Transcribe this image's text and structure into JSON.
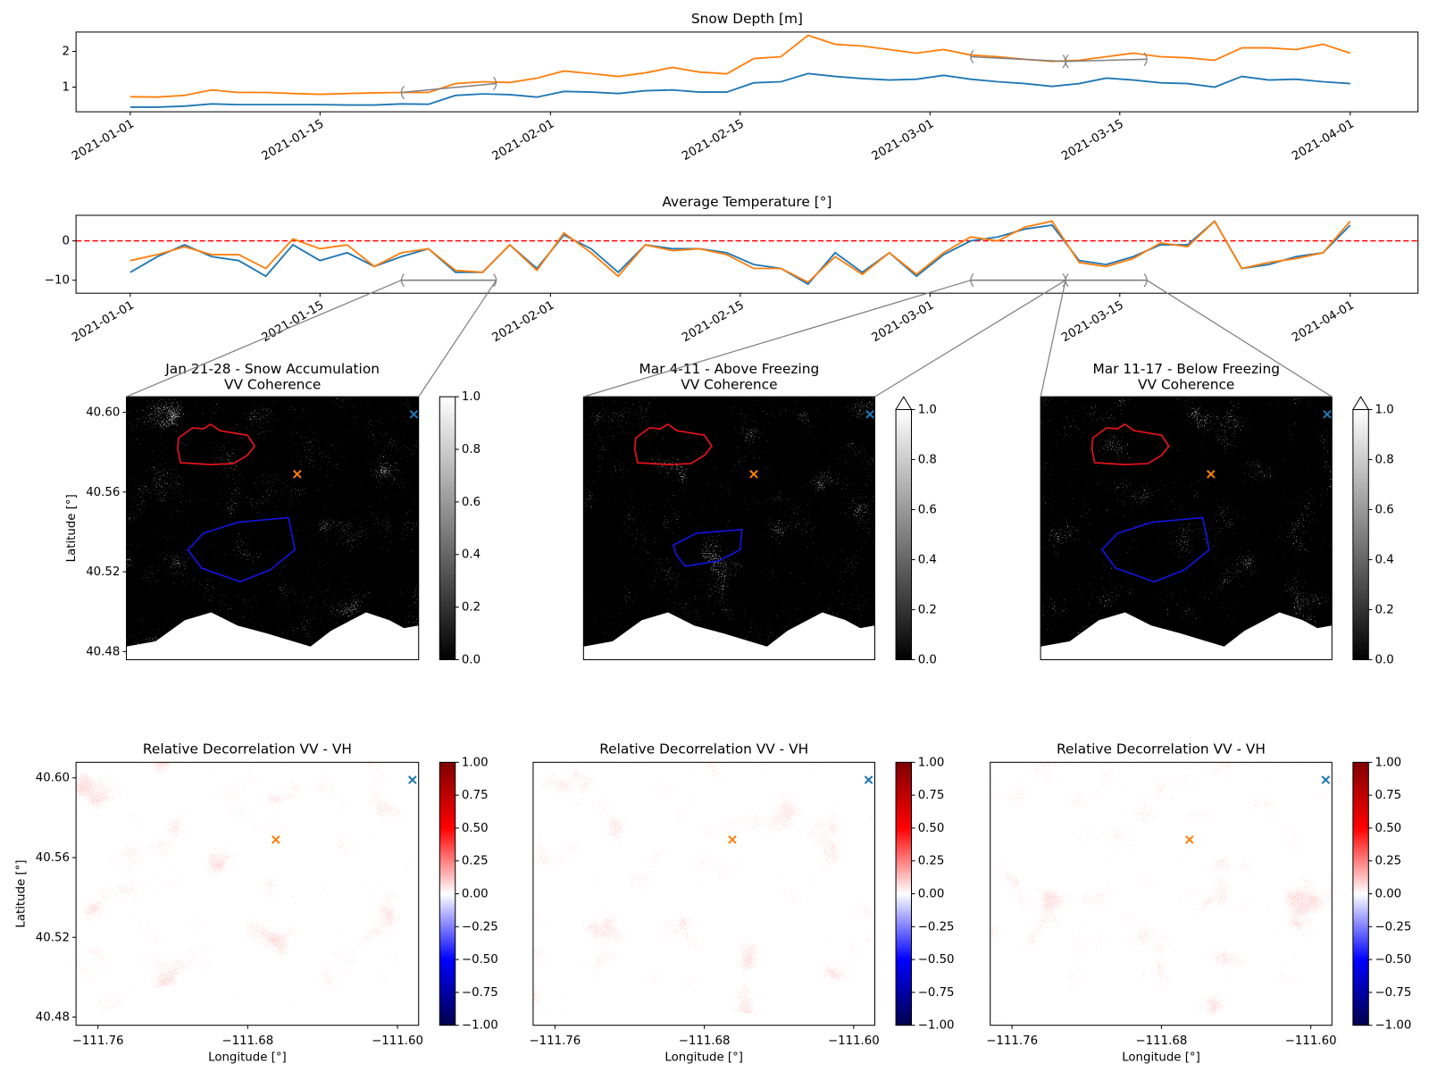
{
  "chart_data": [
    {
      "type": "line",
      "title": "Snow Depth [m]",
      "x": [
        "2021-01-01",
        "2021-01-03",
        "2021-01-05",
        "2021-01-07",
        "2021-01-09",
        "2021-01-11",
        "2021-01-13",
        "2021-01-15",
        "2021-01-17",
        "2021-01-19",
        "2021-01-21",
        "2021-01-23",
        "2021-01-25",
        "2021-01-27",
        "2021-01-29",
        "2021-01-31",
        "2021-02-02",
        "2021-02-04",
        "2021-02-06",
        "2021-02-08",
        "2021-02-10",
        "2021-02-12",
        "2021-02-14",
        "2021-02-16",
        "2021-02-18",
        "2021-02-20",
        "2021-02-22",
        "2021-02-24",
        "2021-02-26",
        "2021-02-28",
        "2021-03-02",
        "2021-03-04",
        "2021-03-06",
        "2021-03-08",
        "2021-03-10",
        "2021-03-12",
        "2021-03-14",
        "2021-03-16",
        "2021-03-18",
        "2021-03-20",
        "2021-03-22",
        "2021-03-24",
        "2021-03-26",
        "2021-03-28",
        "2021-03-30",
        "2021-04-01"
      ],
      "series": [
        {
          "color": "#1f77b4",
          "values": [
            0.44,
            0.44,
            0.47,
            0.53,
            0.51,
            0.51,
            0.51,
            0.51,
            0.5,
            0.5,
            0.53,
            0.52,
            0.77,
            0.81,
            0.79,
            0.72,
            0.88,
            0.86,
            0.82,
            0.9,
            0.92,
            0.86,
            0.86,
            1.12,
            1.15,
            1.38,
            1.3,
            1.24,
            1.2,
            1.22,
            1.33,
            1.22,
            1.15,
            1.1,
            1.02,
            1.1,
            1.25,
            1.2,
            1.12,
            1.1,
            1.0,
            1.3,
            1.2,
            1.22,
            1.15,
            1.1
          ]
        },
        {
          "color": "#ff7f0e",
          "values": [
            0.73,
            0.72,
            0.77,
            0.92,
            0.85,
            0.85,
            0.82,
            0.8,
            0.82,
            0.84,
            0.85,
            0.85,
            1.1,
            1.15,
            1.13,
            1.25,
            1.45,
            1.38,
            1.3,
            1.4,
            1.55,
            1.42,
            1.37,
            1.8,
            1.85,
            2.45,
            2.2,
            2.15,
            2.05,
            1.95,
            2.05,
            1.9,
            1.85,
            1.78,
            1.72,
            1.75,
            1.85,
            1.95,
            1.85,
            1.82,
            1.75,
            2.1,
            2.1,
            2.05,
            2.2,
            1.95
          ]
        }
      ],
      "xlim": [
        "2020-12-28",
        "2021-04-06"
      ],
      "xticks": [
        "2021-01-01",
        "2021-01-15",
        "2021-02-01",
        "2021-02-15",
        "2021-03-01",
        "2021-03-15",
        "2021-04-01"
      ],
      "ylim": [
        0.31,
        2.54
      ],
      "yticks": [
        1,
        2
      ],
      "periods": [
        {
          "start": "2021-01-21",
          "end": "2021-01-28",
          "y": [
            0.85,
            1.1
          ]
        },
        {
          "start": "2021-03-04",
          "end": "2021-03-11",
          "y": [
            1.85,
            1.72
          ]
        },
        {
          "start": "2021-03-11",
          "end": "2021-03-17",
          "y": [
            1.72,
            1.78
          ]
        }
      ],
      "period_color": "#808080"
    },
    {
      "type": "line",
      "title": "Average Temperature [°]",
      "x": [
        "2021-01-01",
        "2021-01-03",
        "2021-01-05",
        "2021-01-07",
        "2021-01-09",
        "2021-01-11",
        "2021-01-13",
        "2021-01-15",
        "2021-01-17",
        "2021-01-19",
        "2021-01-21",
        "2021-01-23",
        "2021-01-25",
        "2021-01-27",
        "2021-01-29",
        "2021-01-31",
        "2021-02-02",
        "2021-02-04",
        "2021-02-06",
        "2021-02-08",
        "2021-02-10",
        "2021-02-12",
        "2021-02-14",
        "2021-02-16",
        "2021-02-18",
        "2021-02-20",
        "2021-02-22",
        "2021-02-24",
        "2021-02-26",
        "2021-02-28",
        "2021-03-02",
        "2021-03-04",
        "2021-03-06",
        "2021-03-08",
        "2021-03-10",
        "2021-03-12",
        "2021-03-14",
        "2021-03-16",
        "2021-03-18",
        "2021-03-20",
        "2021-03-22",
        "2021-03-24",
        "2021-03-26",
        "2021-03-28",
        "2021-03-30",
        "2021-04-01"
      ],
      "series": [
        {
          "color": "#1f77b4",
          "values": [
            -8,
            -4,
            -1,
            -4,
            -5,
            -9,
            -1,
            -5,
            -3,
            -6.5,
            -4,
            -2,
            -8,
            -8,
            -1,
            -7,
            1.5,
            -2,
            -8,
            -1,
            -2,
            -2,
            -3,
            -6,
            -7,
            -11,
            -3,
            -8,
            -3,
            -9,
            -3.5,
            0,
            1,
            3,
            4,
            -5,
            -6,
            -4,
            -1,
            -1,
            5,
            -7,
            -6,
            -4,
            -3,
            4
          ]
        },
        {
          "color": "#ff7f0e",
          "values": [
            -5,
            -3.5,
            -1.5,
            -3.5,
            -3.5,
            -7,
            0.5,
            -2,
            -1,
            -6.5,
            -3,
            -2,
            -7.5,
            -8,
            -1,
            -7.5,
            2,
            -3,
            -9,
            -1,
            -2.5,
            -2,
            -3.5,
            -7,
            -7,
            -10.5,
            -4,
            -8.5,
            -3,
            -8.5,
            -3,
            1,
            0,
            3.5,
            5,
            -5.5,
            -6.5,
            -4.5,
            -0.5,
            -1.5,
            5,
            -7,
            -5.5,
            -4.5,
            -3,
            5
          ]
        }
      ],
      "xlim": [
        "2020-12-28",
        "2021-04-06"
      ],
      "xticks": [
        "2021-01-01",
        "2021-01-15",
        "2021-02-01",
        "2021-02-15",
        "2021-03-01",
        "2021-03-15",
        "2021-04-01"
      ],
      "ylim": [
        -13.3,
        6.5
      ],
      "yticks": [
        {
          "value": -10,
          "label": "−10"
        },
        0
      ],
      "reference_line": {
        "value": 0,
        "color": "#ff0000",
        "style": "dashed"
      },
      "periods": [
        {
          "start": "2021-01-21",
          "end": "2021-01-28",
          "y": [
            -10,
            -10
          ]
        },
        {
          "start": "2021-03-04",
          "end": "2021-03-11",
          "y": [
            -10,
            -10
          ]
        },
        {
          "start": "2021-03-11",
          "end": "2021-03-17",
          "y": [
            -10,
            -10
          ]
        }
      ],
      "period_color": "#808080"
    },
    {
      "type": "image",
      "title": "Jan 21-28 - Snow Accumulation",
      "subtitle": "VV Coherence",
      "colormap": "gray",
      "xlim": [
        -111.772,
        -111.589
      ],
      "ylim": [
        40.4759,
        40.6078
      ],
      "ylabel": "Latitude [°]",
      "yticks": [
        {
          "value": 40.48,
          "label": "40.48"
        },
        40.52,
        40.56,
        {
          "value": 40.6,
          "label": "40.60"
        }
      ],
      "clim": [
        0,
        1
      ],
      "cbar_ticks": [
        {
          "value": 0,
          "label": "0.0"
        },
        0.2,
        0.4,
        0.6,
        0.8,
        {
          "value": 1,
          "label": "1.0"
        }
      ],
      "markers": [
        {
          "lon": -111.665,
          "lat": 40.569,
          "color": "#ff7f0e"
        },
        {
          "lon": -111.592,
          "lat": 40.599,
          "color": "#1f77b4"
        }
      ]
    },
    {
      "type": "image",
      "title": "Mar 4-11 - Above Freezing",
      "subtitle": "VV Coherence",
      "colormap": "gray",
      "colorbar_extend": "max",
      "xlim": [
        -111.772,
        -111.589
      ],
      "ylim": [
        40.4759,
        40.6078
      ],
      "clim": [
        0,
        1
      ],
      "cbar_ticks": [
        {
          "value": 0,
          "label": "0.0"
        },
        0.2,
        0.4,
        0.6,
        0.8,
        {
          "value": 1,
          "label": "1.0"
        }
      ],
      "markers": [
        {
          "lon": -111.665,
          "lat": 40.569,
          "color": "#ff7f0e"
        },
        {
          "lon": -111.592,
          "lat": 40.599,
          "color": "#1f77b4"
        }
      ]
    },
    {
      "type": "image",
      "title": "Mar 11-17 - Below Freezing",
      "subtitle": "VV Coherence",
      "colormap": "gray",
      "colorbar_extend": "max",
      "xlim": [
        -111.772,
        -111.589
      ],
      "ylim": [
        40.4759,
        40.6078
      ],
      "clim": [
        0,
        1
      ],
      "cbar_ticks": [
        {
          "value": 0,
          "label": "0.0"
        },
        0.2,
        0.4,
        0.6,
        0.8,
        {
          "value": 1,
          "label": "1.0"
        }
      ],
      "markers": [
        {
          "lon": -111.665,
          "lat": 40.569,
          "color": "#ff7f0e"
        },
        {
          "lon": -111.592,
          "lat": 40.599,
          "color": "#1f77b4"
        }
      ]
    },
    {
      "type": "image",
      "title": "Relative Decorrelation VV - VH",
      "colormap": "seismic",
      "xlim": [
        -111.7717,
        -111.5887
      ],
      "ylim": [
        40.4759,
        40.6078
      ],
      "xlabel": "Longitude [°]",
      "xticks": [
        {
          "value": -111.76,
          "label": "−111.76"
        },
        {
          "value": -111.68,
          "label": "−111.68"
        },
        {
          "value": -111.6,
          "label": "−111.60"
        }
      ],
      "ylabel": "Latitude [°]",
      "yticks": [
        {
          "value": 40.48,
          "label": "40.48"
        },
        40.52,
        40.56,
        {
          "value": 40.6,
          "label": "40.60"
        }
      ],
      "clim": [
        -1,
        1
      ],
      "cbar_ticks": [
        {
          "value": -1,
          "label": "−1.00"
        },
        {
          "value": -0.75,
          "label": "−0.75"
        },
        {
          "value": -0.5,
          "label": "−0.50"
        },
        {
          "value": -0.25,
          "label": "−0.25"
        },
        {
          "value": 0,
          "label": "0.00"
        },
        0.25,
        {
          "value": 0.5,
          "label": "0.50"
        },
        0.75,
        {
          "value": 1,
          "label": "1.00"
        }
      ],
      "markers": [
        {
          "lon": -111.665,
          "lat": 40.569,
          "color": "#ff7f0e"
        },
        {
          "lon": -111.592,
          "lat": 40.599,
          "color": "#1f77b4"
        }
      ]
    },
    {
      "type": "image",
      "title": "Relative Decorrelation VV - VH",
      "colormap": "seismic",
      "xlim": [
        -111.7717,
        -111.5887
      ],
      "ylim": [
        40.4759,
        40.6078
      ],
      "xlabel": "Longitude [°]",
      "xticks": [
        {
          "value": -111.76,
          "label": "−111.76"
        },
        {
          "value": -111.68,
          "label": "−111.68"
        },
        {
          "value": -111.6,
          "label": "−111.60"
        }
      ],
      "clim": [
        -1,
        1
      ],
      "cbar_ticks": [
        {
          "value": -1,
          "label": "−1.00"
        },
        {
          "value": -0.75,
          "label": "−0.75"
        },
        {
          "value": -0.5,
          "label": "−0.50"
        },
        {
          "value": -0.25,
          "label": "−0.25"
        },
        {
          "value": 0,
          "label": "0.00"
        },
        0.25,
        {
          "value": 0.5,
          "label": "0.50"
        },
        0.75,
        {
          "value": 1,
          "label": "1.00"
        }
      ],
      "markers": [
        {
          "lon": -111.665,
          "lat": 40.569,
          "color": "#ff7f0e"
        },
        {
          "lon": -111.592,
          "lat": 40.599,
          "color": "#1f77b4"
        }
      ]
    },
    {
      "type": "image",
      "title": "Relative Decorrelation VV - VH",
      "colormap": "seismic",
      "xlim": [
        -111.7717,
        -111.5887
      ],
      "ylim": [
        40.4759,
        40.6078
      ],
      "xlabel": "Longitude [°]",
      "xticks": [
        {
          "value": -111.76,
          "label": "−111.76"
        },
        {
          "value": -111.68,
          "label": "−111.68"
        },
        {
          "value": -111.6,
          "label": "−111.60"
        }
      ],
      "clim": [
        -1,
        1
      ],
      "cbar_ticks": [
        {
          "value": -1,
          "label": "−1.00"
        },
        {
          "value": -0.75,
          "label": "−0.75"
        },
        {
          "value": -0.5,
          "label": "−0.50"
        },
        {
          "value": -0.25,
          "label": "−0.25"
        },
        {
          "value": 0,
          "label": "0.00"
        },
        0.25,
        {
          "value": 0.5,
          "label": "0.50"
        },
        0.75,
        {
          "value": 1,
          "label": "1.00"
        }
      ],
      "markers": [
        {
          "lon": -111.665,
          "lat": 40.569,
          "color": "#ff7f0e"
        },
        {
          "lon": -111.592,
          "lat": 40.599,
          "color": "#1f77b4"
        }
      ]
    }
  ]
}
